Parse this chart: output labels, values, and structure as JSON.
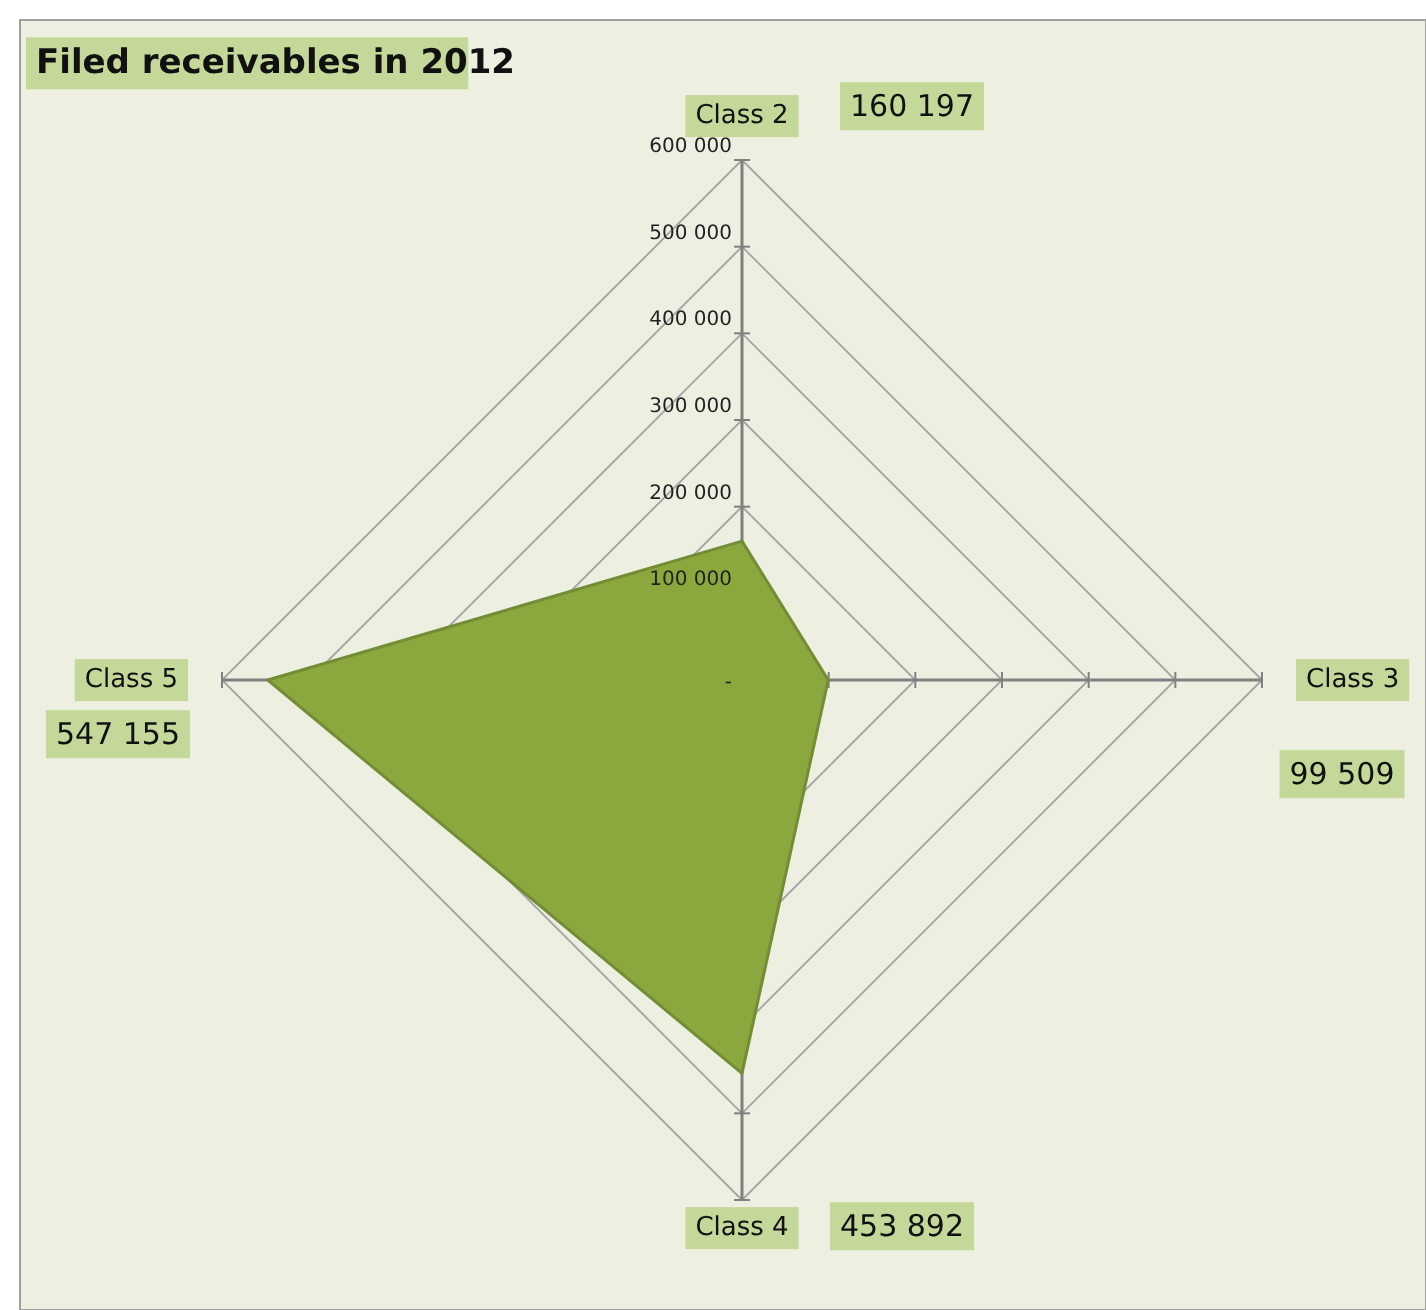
{
  "chart_data": {
    "type": "radar",
    "title": "Filed receivables in 2012",
    "categories": [
      "Class 2",
      "Class 3",
      "Class 4",
      "Class 5"
    ],
    "series": [
      {
        "color": "#8aa83e",
        "values": [
          160197,
          99509,
          453892,
          547155
        ]
      }
    ],
    "value_labels": [
      "160 197",
      "99 509",
      "453 892",
      "547 155"
    ],
    "ylim": [
      0,
      600000
    ],
    "yticks": [
      {
        "value": 0,
        "label": "-"
      },
      {
        "value": 100000,
        "label": "100 000"
      },
      {
        "value": 200000,
        "label": "200 000"
      },
      {
        "value": 300000,
        "label": "300 000"
      },
      {
        "value": 400000,
        "label": "400 000"
      },
      {
        "value": 500000,
        "label": "500 000"
      },
      {
        "value": 600000,
        "label": "600 000"
      }
    ],
    "grid": true
  }
}
